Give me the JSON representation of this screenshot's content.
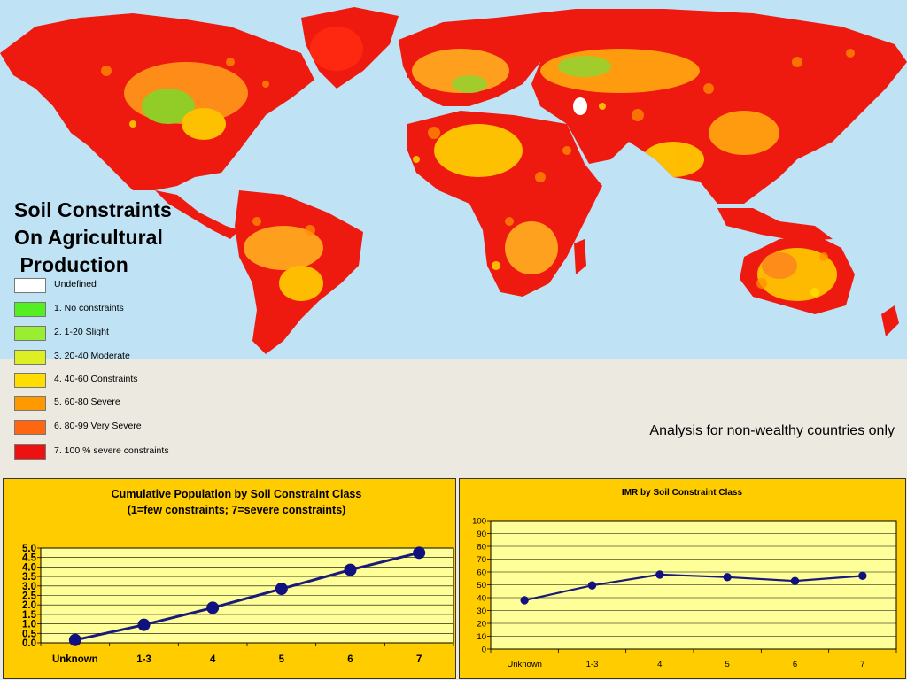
{
  "title_lines": [
    "Soil Constraints",
    "On Agricultural",
    " Production"
  ],
  "legend": [
    {
      "label": "Undefined",
      "color": "#ffffff"
    },
    {
      "label": "1. No constraints",
      "color": "#55ee22"
    },
    {
      "label": "2. 1-20 Slight",
      "color": "#99ee33"
    },
    {
      "label": "3. 20-40 Moderate",
      "color": "#ddee22"
    },
    {
      "label": "4. 40-60 Constraints",
      "color": "#ffdd00"
    },
    {
      "label": "5. 60-80 Severe",
      "color": "#ff9900"
    },
    {
      "label": "6. 80-99 Very Severe",
      "color": "#ff6611"
    },
    {
      "label": " 7. 100 % severe constraints",
      "color": "#ee1111"
    }
  ],
  "note": "Analysis for non-wealthy countries only",
  "colors": {
    "ocean": "#bfe3f5",
    "panel_bg": "#ffcc00",
    "plot_bg": "#ffff99",
    "line": "#1a1a7a",
    "marker": "#10107e"
  },
  "chart_data": [
    {
      "type": "line",
      "title": "Cumulative Population by Soil Constraint Class",
      "subtitle": "(1=few constraints; 7=severe constraints)",
      "categories": [
        "Unknown",
        "1-3",
        "4",
        "5",
        "6",
        "7"
      ],
      "values": [
        0.15,
        0.95,
        1.85,
        2.85,
        3.85,
        4.75
      ],
      "ylim": [
        0,
        5
      ],
      "yticks": [
        "0.0",
        "0.5",
        "1.0",
        "1.5",
        "2.0",
        "2.5",
        "3.0",
        "3.5",
        "4.0",
        "4.5",
        "5.0"
      ],
      "grid": true,
      "xlabel": "",
      "ylabel": ""
    },
    {
      "type": "line",
      "title": "IMR by Soil Constraint Class",
      "categories": [
        "Unknown",
        "1-3",
        "4",
        "5",
        "6",
        "7"
      ],
      "values": [
        38,
        49.5,
        58,
        56,
        53,
        57
      ],
      "ylim": [
        0,
        100
      ],
      "yticks": [
        "0",
        "10",
        "20",
        "30",
        "40",
        "50",
        "60",
        "70",
        "80",
        "90",
        "100"
      ],
      "grid": true,
      "xlabel": "",
      "ylabel": ""
    }
  ]
}
